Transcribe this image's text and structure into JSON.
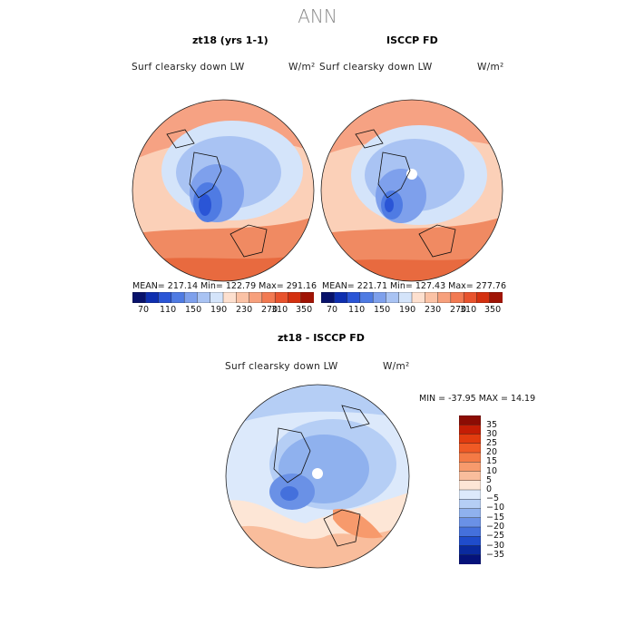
{
  "title": "ANN",
  "panels": [
    {
      "title": "zt18 (yrs 1-1)",
      "variable": "Surf clearsky down LW",
      "units": "W/m²",
      "stats": "MEAN=  217.14   Min=  122.79   Max=  291.16"
    },
    {
      "title": "ISCCP FD",
      "variable": "Surf clearsky down LW",
      "units": "W/m²",
      "stats": "MEAN=  221.71   Min=  127.43   Max=  277.76"
    },
    {
      "title": "zt18 - ISCCP FD",
      "variable": "Surf clearsky down LW",
      "units": "W/m²",
      "stats": "MIN = -37.95  MAX =   14.19"
    }
  ],
  "colorbar_top": {
    "tick_labels": [
      "70",
      "110",
      "150",
      "190",
      "230",
      "270",
      "310",
      "350"
    ],
    "colors": [
      "#08126b",
      "#0e2fb0",
      "#2a55d6",
      "#4f7be3",
      "#7ea0ec",
      "#a9c3f3",
      "#d4e4fa",
      "#fde0cf",
      "#fbc2a5",
      "#f7a07c",
      "#f27a52",
      "#e8532d",
      "#d4300f",
      "#a01405"
    ]
  },
  "colorbar_diff": {
    "tick_labels": [
      "35",
      "30",
      "25",
      "20",
      "15",
      "10",
      "5",
      "0",
      "−5",
      "−10",
      "−15",
      "−20",
      "−25",
      "−30",
      "−35"
    ],
    "colors": [
      "#8c0c04",
      "#c41d05",
      "#e23c0f",
      "#f05a25",
      "#f47a45",
      "#f79a6c",
      "#f9bd9c",
      "#fde6d6",
      "#dce9fb",
      "#b5cef5",
      "#8fb1ee",
      "#6a91e6",
      "#4470dc",
      "#1f4ccb",
      "#0a2a9e",
      "#05127a"
    ]
  }
}
